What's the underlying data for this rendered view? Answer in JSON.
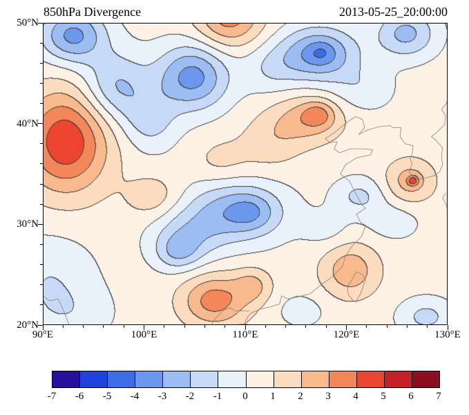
{
  "header": {
    "title": "850hPa Divergence",
    "timestamp": "2013-05-25_20:00:00"
  },
  "chart_data": {
    "type": "heatmap",
    "subtype": "filled-contour-map",
    "title": "850hPa Divergence",
    "time_label": "2013-05-25_20:00:00",
    "x_axis": {
      "min": 90,
      "max": 130,
      "major_ticks": [
        90,
        100,
        110,
        120,
        130
      ],
      "tick_labels": [
        "90°E",
        "100°E",
        "110°E",
        "120°E",
        "130°E"
      ],
      "minor_step": 2
    },
    "y_axis": {
      "min": 20,
      "max": 50,
      "major_ticks": [
        20,
        30,
        40,
        50
      ],
      "tick_labels": [
        "20°N",
        "30°N",
        "40°N",
        "50°N"
      ],
      "minor_step": 2
    },
    "contour_levels": [
      -7,
      -6,
      -5,
      -4,
      -3,
      -2,
      -1,
      0,
      1,
      2,
      3,
      4,
      5,
      6,
      7
    ],
    "colorbar_tick_labels": [
      "-7",
      "-6",
      "-5",
      "-4",
      "-3",
      "-2",
      "-1",
      "0",
      "1",
      "2",
      "3",
      "4",
      "5",
      "6",
      "7"
    ],
    "fill_colors": [
      "#27109c",
      "#1f41dd",
      "#3c6ce8",
      "#6b97ee",
      "#9cbdf3",
      "#c6daf7",
      "#e9f1fb",
      "#fdf2e5",
      "#fbdcbe",
      "#f8b98d",
      "#f4875a",
      "#ec452f",
      "#c51f28",
      "#8e0e21"
    ],
    "contour_line_color": "#3f3f3f",
    "coastline_color": "#8f8274",
    "base_value": 0.4,
    "gaussian_features": [
      {
        "lon": 92.3,
        "lat": 38.2,
        "amp": 4.4,
        "sx": 3.0,
        "sy": 3.6
      },
      {
        "lon": 93.0,
        "lat": 48.7,
        "amp": -3.7,
        "sx": 2.3,
        "sy": 1.9
      },
      {
        "lon": 97.2,
        "lat": 43.6,
        "amp": -2.6,
        "sx": 2.3,
        "sy": 2.4
      },
      {
        "lon": 104.8,
        "lat": 44.6,
        "amp": -3.8,
        "sx": 2.5,
        "sy": 2.3
      },
      {
        "lon": 100.6,
        "lat": 40.2,
        "amp": -1.7,
        "sx": 1.9,
        "sy": 2.1
      },
      {
        "lon": 108.4,
        "lat": 50.6,
        "amp": 3.1,
        "sx": 2.3,
        "sy": 2.1
      },
      {
        "lon": 117.3,
        "lat": 46.9,
        "amp": -3.7,
        "sx": 2.7,
        "sy": 1.9
      },
      {
        "lon": 117.5,
        "lat": 47.0,
        "amp": -0.9,
        "sx": 0.9,
        "sy": 0.7
      },
      {
        "lon": 125.9,
        "lat": 48.9,
        "amp": -2.7,
        "sx": 2.1,
        "sy": 1.7
      },
      {
        "lon": 121.6,
        "lat": 43.4,
        "amp": -1.1,
        "sx": 2.2,
        "sy": 1.6
      },
      {
        "lon": 112.6,
        "lat": 45.4,
        "amp": -1.2,
        "sx": 2.0,
        "sy": 1.8
      },
      {
        "lon": 116.1,
        "lat": 40.4,
        "amp": 2.1,
        "sx": 2.5,
        "sy": 1.7
      },
      {
        "lon": 117.3,
        "lat": 40.9,
        "amp": 1.7,
        "sx": 1.1,
        "sy": 0.9
      },
      {
        "lon": 112.4,
        "lat": 38.0,
        "amp": 1.1,
        "sx": 2.2,
        "sy": 1.9
      },
      {
        "lon": 107.6,
        "lat": 36.3,
        "amp": 0.9,
        "sx": 1.9,
        "sy": 1.6
      },
      {
        "lon": 100.9,
        "lat": 32.7,
        "amp": 1.3,
        "sx": 1.9,
        "sy": 1.5
      },
      {
        "lon": 109.1,
        "lat": 31.2,
        "amp": -3.2,
        "sx": 3.4,
        "sy": 2.1
      },
      {
        "lon": 110.7,
        "lat": 31.2,
        "amp": -1.0,
        "sx": 1.5,
        "sy": 1.2
      },
      {
        "lon": 104.1,
        "lat": 28.6,
        "amp": -1.9,
        "sx": 2.4,
        "sy": 1.9
      },
      {
        "lon": 103.3,
        "lat": 27.1,
        "amp": -1.5,
        "sx": 1.5,
        "sy": 1.2
      },
      {
        "lon": 107.0,
        "lat": 22.4,
        "amp": 3.1,
        "sx": 2.3,
        "sy": 1.8
      },
      {
        "lon": 110.8,
        "lat": 23.9,
        "amp": 1.7,
        "sx": 1.3,
        "sy": 1.2
      },
      {
        "lon": 120.4,
        "lat": 25.4,
        "amp": 2.3,
        "sx": 2.0,
        "sy": 1.9
      },
      {
        "lon": 126.3,
        "lat": 34.3,
        "amp": 2.1,
        "sx": 1.7,
        "sy": 1.5
      },
      {
        "lon": 126.6,
        "lat": 34.3,
        "amp": 2.3,
        "sx": 0.4,
        "sy": 0.35
      },
      {
        "lon": 121.3,
        "lat": 32.8,
        "amp": -1.6,
        "sx": 1.8,
        "sy": 1.3
      },
      {
        "lon": 124.6,
        "lat": 30.2,
        "amp": -1.0,
        "sx": 1.9,
        "sy": 1.3
      },
      {
        "lon": 118.1,
        "lat": 29.4,
        "amp": -0.8,
        "sx": 1.7,
        "sy": 1.3
      },
      {
        "lon": 90.6,
        "lat": 24.6,
        "amp": -1.3,
        "sx": 3.2,
        "sy": 3.2
      },
      {
        "lon": 93.0,
        "lat": 21.0,
        "amp": -0.8,
        "sx": 3.0,
        "sy": 2.0
      },
      {
        "lon": 127.9,
        "lat": 20.8,
        "amp": -1.7,
        "sx": 1.9,
        "sy": 1.3
      },
      {
        "lon": 115.6,
        "lat": 21.4,
        "amp": -0.9,
        "sx": 1.7,
        "sy": 1.2
      }
    ]
  },
  "map": {
    "coastlines": [
      [
        [
          124.3,
          39.8
        ],
        [
          123.3,
          39.7
        ],
        [
          122.2,
          39.4
        ],
        [
          121.2,
          38.9
        ],
        [
          121.8,
          39.6
        ],
        [
          121.6,
          40.4
        ],
        [
          120.9,
          40.7
        ],
        [
          119.9,
          40.0
        ],
        [
          118.8,
          39.1
        ],
        [
          117.9,
          38.5
        ],
        [
          118.4,
          38.1
        ],
        [
          119.1,
          38.2
        ],
        [
          118.8,
          37.5
        ],
        [
          119.3,
          37.1
        ],
        [
          120.4,
          37.5
        ],
        [
          121.6,
          37.5
        ],
        [
          122.6,
          37.4
        ],
        [
          122.4,
          36.9
        ],
        [
          121.0,
          36.6
        ],
        [
          119.9,
          35.9
        ],
        [
          119.4,
          35.0
        ],
        [
          120.3,
          34.3
        ],
        [
          120.9,
          33.1
        ],
        [
          121.5,
          32.0
        ],
        [
          121.9,
          31.6
        ],
        [
          121.0,
          31.0
        ],
        [
          121.4,
          30.2
        ],
        [
          121.9,
          29.9
        ],
        [
          121.5,
          28.8
        ],
        [
          120.6,
          27.9
        ],
        [
          119.9,
          26.8
        ],
        [
          119.6,
          25.8
        ],
        [
          118.5,
          24.7
        ],
        [
          117.5,
          24.0
        ],
        [
          116.4,
          23.1
        ],
        [
          115.2,
          22.8
        ],
        [
          114.2,
          22.6
        ],
        [
          113.6,
          22.9
        ],
        [
          113.4,
          22.1
        ],
        [
          112.5,
          21.8
        ],
        [
          111.5,
          21.6
        ],
        [
          110.6,
          21.2
        ],
        [
          110.3,
          20.9
        ],
        [
          110.0,
          20.3
        ],
        [
          109.9,
          20.0
        ]
      ],
      [
        [
          110.4,
          21.4
        ],
        [
          109.6,
          21.4
        ],
        [
          109.1,
          21.4
        ],
        [
          108.5,
          21.7
        ],
        [
          107.9,
          21.5
        ],
        [
          107.3,
          20.9
        ],
        [
          106.8,
          20.4
        ],
        [
          106.7,
          20.0
        ]
      ],
      [
        [
          109.2,
          20.0
        ],
        [
          109.6,
          20.1
        ],
        [
          110.1,
          20.1
        ],
        [
          110.6,
          20.0
        ]
      ],
      [
        [
          121.0,
          25.3
        ],
        [
          121.6,
          25.0
        ],
        [
          121.9,
          24.5
        ],
        [
          121.4,
          23.1
        ],
        [
          120.9,
          22.3
        ],
        [
          120.6,
          22.5
        ],
        [
          120.2,
          23.0
        ],
        [
          120.1,
          23.8
        ],
        [
          120.6,
          24.6
        ],
        [
          121.0,
          25.3
        ]
      ],
      [
        [
          124.3,
          39.8
        ],
        [
          124.6,
          39.6
        ],
        [
          125.4,
          39.6
        ],
        [
          125.3,
          38.7
        ],
        [
          125.8,
          38.0
        ],
        [
          126.6,
          37.8
        ],
        [
          126.5,
          37.0
        ],
        [
          126.3,
          36.5
        ],
        [
          126.5,
          36.0
        ],
        [
          126.2,
          35.2
        ],
        [
          126.9,
          34.5
        ],
        [
          127.8,
          34.6
        ],
        [
          128.6,
          34.8
        ],
        [
          129.2,
          35.2
        ],
        [
          129.5,
          35.9
        ],
        [
          129.4,
          36.8
        ],
        [
          129.5,
          37.6
        ],
        [
          128.8,
          38.4
        ],
        [
          128.4,
          38.7
        ],
        [
          129.0,
          39.2
        ],
        [
          129.7,
          39.9
        ],
        [
          129.8,
          40.8
        ],
        [
          129.4,
          41.4
        ],
        [
          129.8,
          41.9
        ],
        [
          130.0,
          42.3
        ]
      ],
      [
        [
          129.8,
          33.1
        ],
        [
          129.5,
          32.6
        ],
        [
          129.8,
          32.1
        ],
        [
          130.0,
          31.5
        ]
      ],
      [
        [
          90.0,
          22.9
        ],
        [
          90.7,
          22.4
        ],
        [
          91.5,
          22.6
        ],
        [
          91.9,
          21.8
        ],
        [
          92.3,
          20.8
        ],
        [
          92.6,
          20.0
        ]
      ]
    ]
  }
}
